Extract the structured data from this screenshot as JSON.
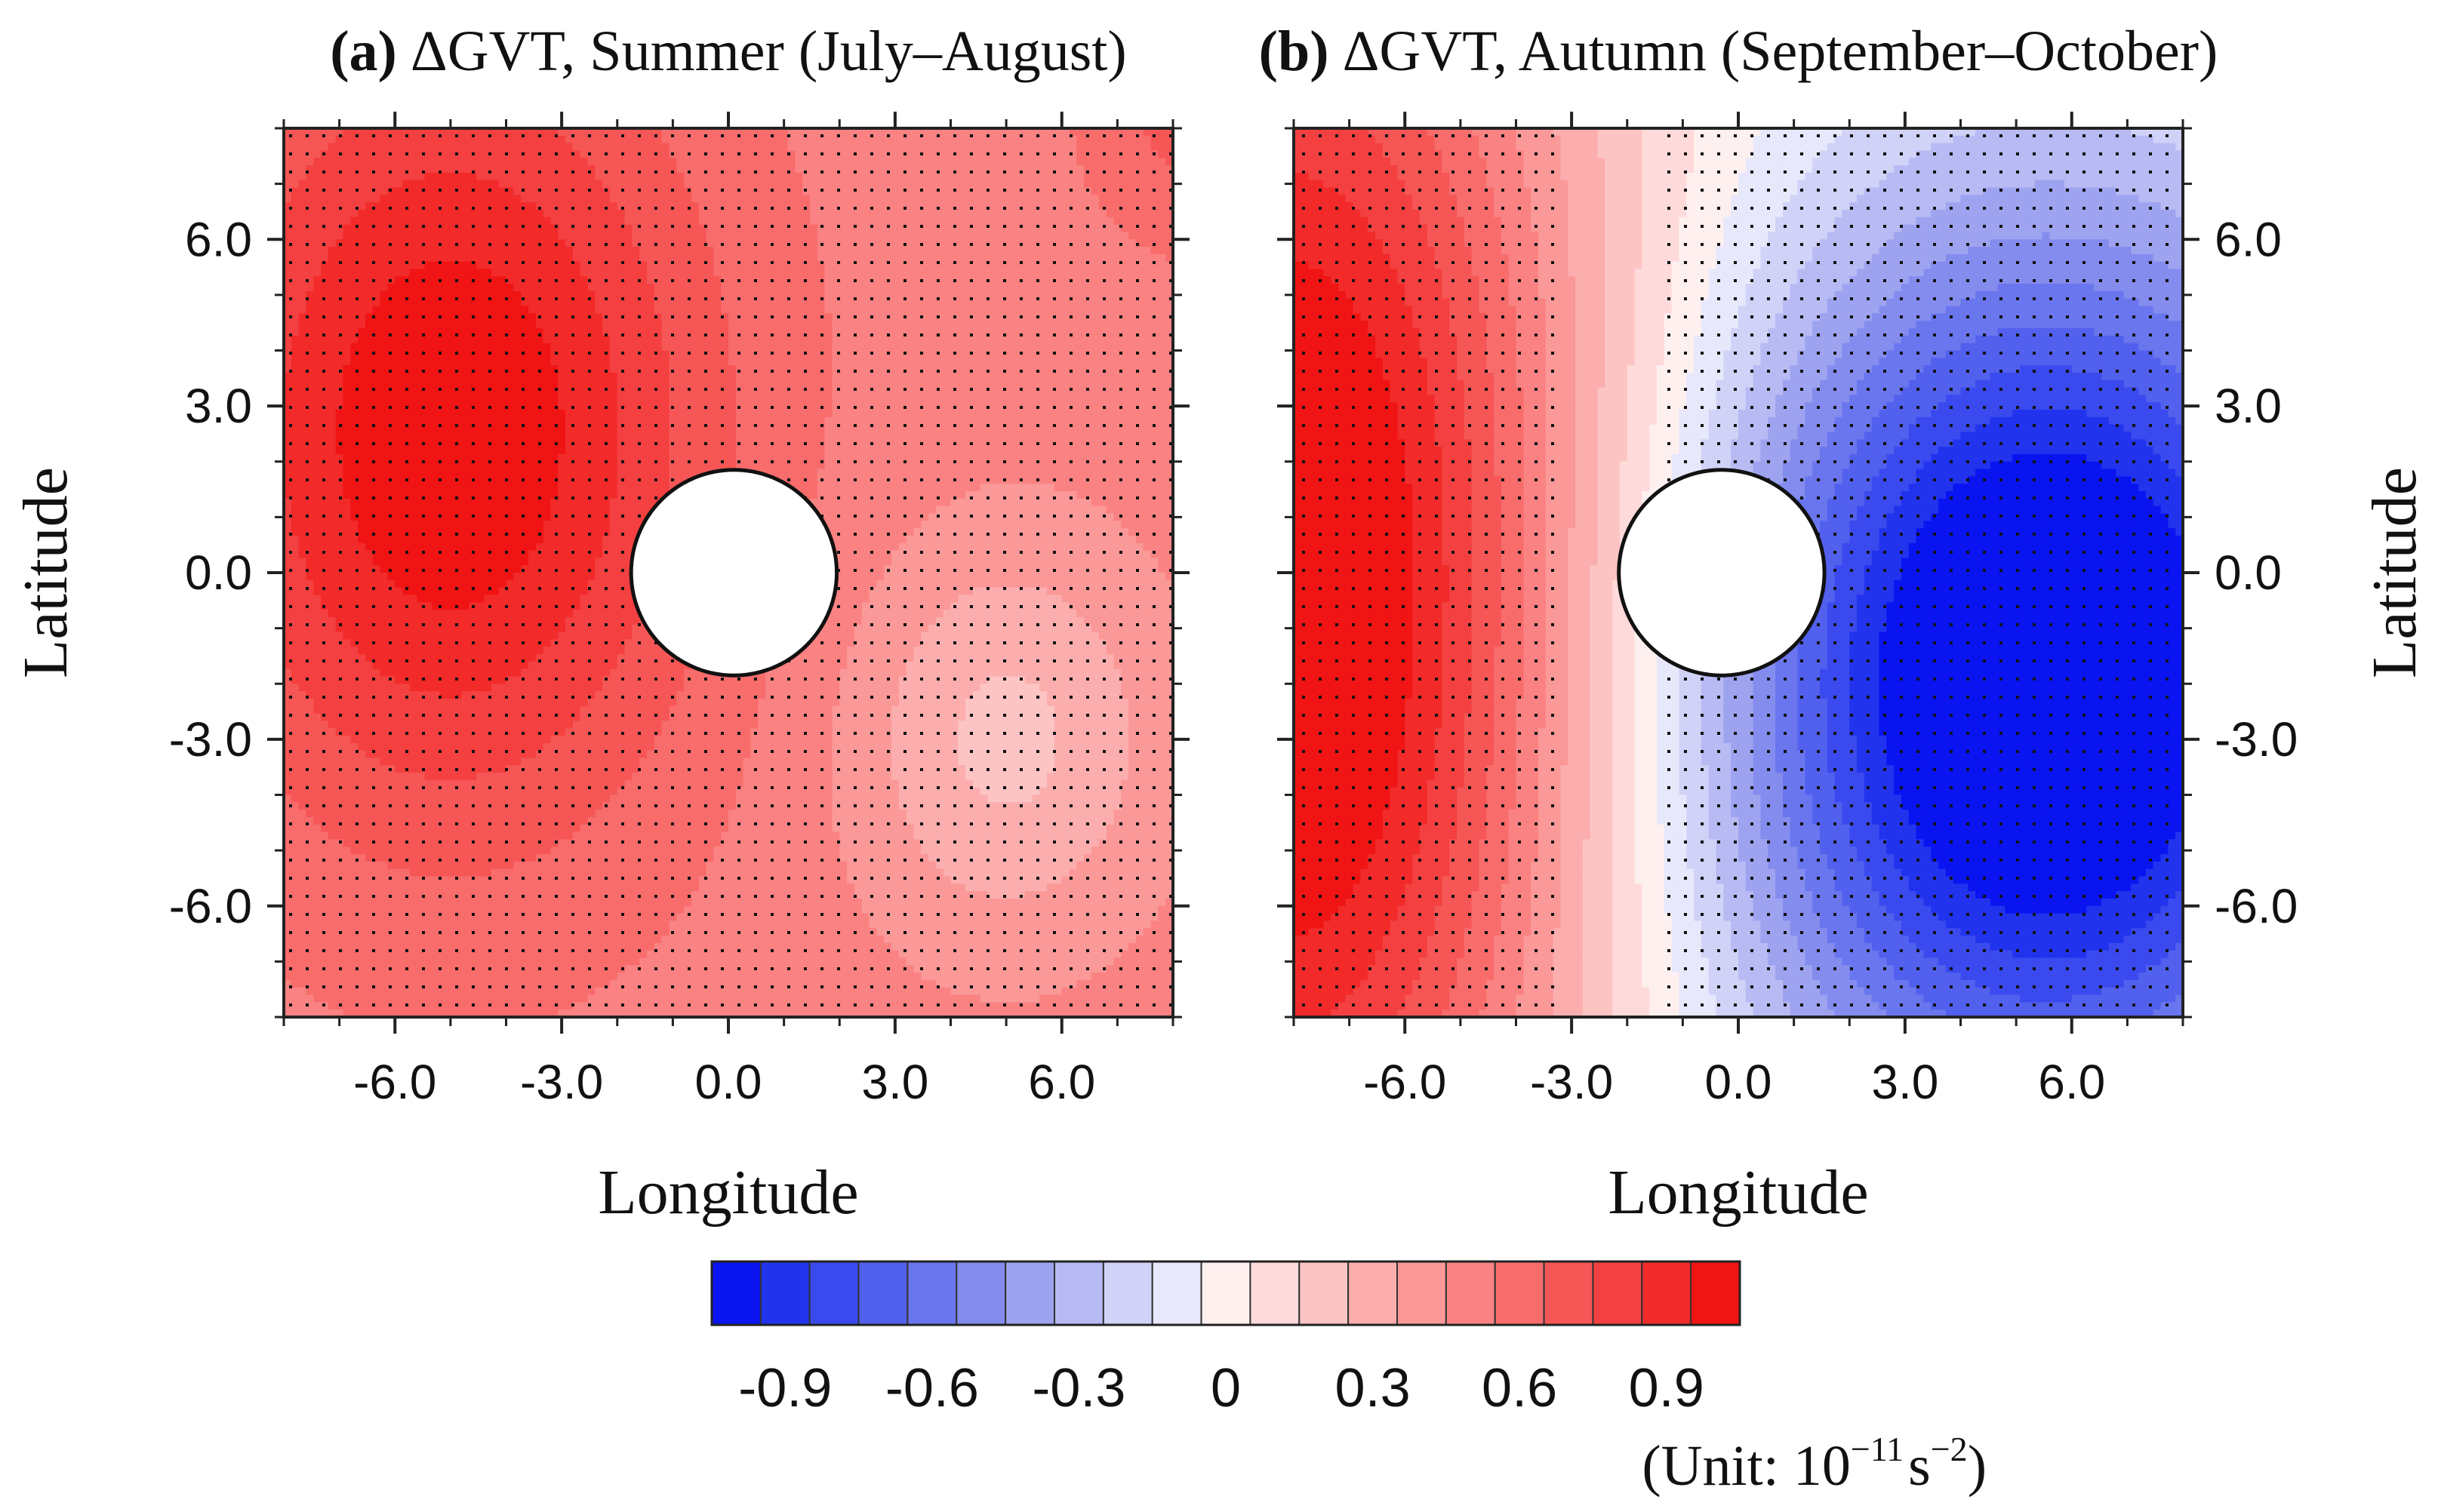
{
  "chart_data": [
    {
      "type": "heatmap",
      "panel": "(a)",
      "title_tag": "(a)",
      "title_text": "ΔGVT, Summer (July–August)",
      "xlabel": "Longitude",
      "ylabel": "Latitude",
      "xlim": [
        -8,
        8
      ],
      "ylim": [
        -8,
        8
      ],
      "xticks": [
        -6.0,
        -3.0,
        0.0,
        3.0,
        6.0
      ],
      "xtick_labels": [
        "-6.0",
        "-3.0",
        "0.0",
        "3.0",
        "6.0"
      ],
      "yticks": [
        6.0,
        3.0,
        0.0,
        -3.0,
        -6.0
      ],
      "ytick_labels": [
        "6.0",
        "3.0",
        "0.0",
        "-3.0",
        "-6.0"
      ],
      "ylabel_side": "left",
      "masked_circle": {
        "center": [
          0.1,
          0.0
        ],
        "radius": 1.85
      },
      "field": {
        "background": 0.5,
        "lobes": [
          {
            "x": -5.0,
            "y": 2.5,
            "sx": 4.5,
            "sy": 7.0,
            "amp": 0.55
          },
          {
            "x": 5.0,
            "y": -3.0,
            "sx": 2.8,
            "sy": 3.6,
            "amp": -0.28
          },
          {
            "x": 8.5,
            "y": 8.5,
            "sx": 2.0,
            "sy": 2.5,
            "amp": 0.2
          }
        ]
      },
      "stippling": "most of domain (significant)"
    },
    {
      "type": "heatmap",
      "panel": "(b)",
      "title_tag": "(b)",
      "title_text": "ΔGVT, Autumn (September–October)",
      "xlabel": "Longitude",
      "ylabel": "Latitude",
      "xlim": [
        -8,
        8
      ],
      "ylim": [
        -8,
        8
      ],
      "xticks": [
        -6.0,
        -3.0,
        0.0,
        3.0,
        6.0
      ],
      "xtick_labels": [
        "-6.0",
        "-3.0",
        "0.0",
        "3.0",
        "6.0"
      ],
      "yticks": [
        6.0,
        3.0,
        0.0,
        -3.0,
        -6.0
      ],
      "ytick_labels": [
        "6.0",
        "3.0",
        "0.0",
        "-3.0",
        "-6.0"
      ],
      "ylabel_side": "right",
      "masked_circle": {
        "center": [
          -0.3,
          0.0
        ],
        "radius": 1.85
      },
      "field": {
        "background": 0.0,
        "lobes": [
          {
            "x": -8.0,
            "y": -0.5,
            "sx": 5.5,
            "sy": 14.0,
            "amp": 1.15
          },
          {
            "x": 5.5,
            "y": -2.0,
            "sx": 6.0,
            "sy": 8.0,
            "amp": -1.25
          }
        ]
      },
      "stippling": "most of domain except near x ≈ -2 to 0 (significant)"
    }
  ],
  "colorbar": {
    "levels": [
      -1.05,
      -0.95,
      -0.85,
      -0.75,
      -0.65,
      -0.55,
      -0.45,
      -0.35,
      -0.25,
      -0.15,
      -0.05,
      0.05,
      0.15,
      0.25,
      0.35,
      0.45,
      0.55,
      0.65,
      0.75,
      0.85,
      0.95,
      1.05
    ],
    "colors": [
      "#0a14f0",
      "#2233ee",
      "#3a4aee",
      "#5260ee",
      "#6a76ee",
      "#848cee",
      "#9ea3f0",
      "#b7baf3",
      "#d0d2f7",
      "#e7e8fb",
      "#fff0f0",
      "#ffdada",
      "#fdc4c4",
      "#fcaeae",
      "#fb9898",
      "#fa8282",
      "#f86c6c",
      "#f65656",
      "#f44040",
      "#f22a2a",
      "#f01414"
    ],
    "labels": [
      "-0.9",
      "-0.6",
      "-0.3",
      "0",
      "0.3",
      "0.6",
      "0.9"
    ],
    "label_values": [
      -0.9,
      -0.6,
      -0.3,
      0.0,
      0.3,
      0.6,
      0.9
    ],
    "unit_text": "(Unit: 10",
    "unit_exp1": "−11",
    "unit_s": "s",
    "unit_exp2": "−2",
    "unit_close": ")"
  }
}
